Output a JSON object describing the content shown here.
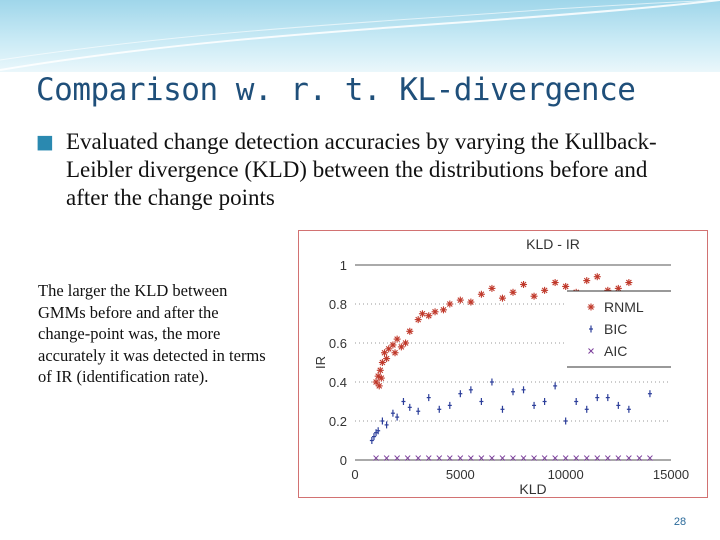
{
  "slide": {
    "title": "Comparison w. r. t. KL-divergence",
    "bullet": "Evaluated change detection accuracies by  varying  the Kullback-Leibler divergence (KLD) between the distributions before and after the change points",
    "side_note": "The larger the KLD between GMMs before and after the change-point was, the more accurately it was detected in terms of  IR (identification rate).",
    "page_number": "28",
    "colors": {
      "title": "#1f4f7a",
      "header": "#9fd6ea",
      "frame": "#d27272"
    }
  },
  "chart_data": {
    "type": "scatter",
    "title": "KLD - IR",
    "xlabel": "KLD",
    "ylabel": "IR",
    "xlim": [
      0,
      15000
    ],
    "ylim": [
      0,
      1
    ],
    "x_ticks": [
      "0",
      "5000",
      "10000",
      "15000"
    ],
    "y_ticks": [
      "0",
      "0.2",
      "0.4",
      "0.6",
      "0.8",
      "1"
    ],
    "legend_position": "right",
    "series": [
      {
        "name": "RNML",
        "marker": "star",
        "color": "#c0392b",
        "points": [
          [
            1000,
            0.4
          ],
          [
            1100,
            0.43
          ],
          [
            1200,
            0.46
          ],
          [
            1300,
            0.5
          ],
          [
            1400,
            0.55
          ],
          [
            1150,
            0.38
          ],
          [
            1250,
            0.42
          ],
          [
            1500,
            0.52
          ],
          [
            1600,
            0.57
          ],
          [
            1800,
            0.59
          ],
          [
            1900,
            0.55
          ],
          [
            2000,
            0.62
          ],
          [
            2200,
            0.58
          ],
          [
            2400,
            0.6
          ],
          [
            2600,
            0.66
          ],
          [
            3000,
            0.72
          ],
          [
            3200,
            0.75
          ],
          [
            3500,
            0.74
          ],
          [
            3800,
            0.76
          ],
          [
            4200,
            0.77
          ],
          [
            4500,
            0.8
          ],
          [
            5000,
            0.82
          ],
          [
            5500,
            0.81
          ],
          [
            6000,
            0.85
          ],
          [
            6500,
            0.88
          ],
          [
            7000,
            0.83
          ],
          [
            7500,
            0.86
          ],
          [
            8000,
            0.9
          ],
          [
            8500,
            0.84
          ],
          [
            9000,
            0.87
          ],
          [
            9500,
            0.91
          ],
          [
            10000,
            0.89
          ],
          [
            10500,
            0.86
          ],
          [
            11000,
            0.92
          ],
          [
            11500,
            0.94
          ],
          [
            12000,
            0.87
          ],
          [
            12500,
            0.88
          ],
          [
            13000,
            0.91
          ]
        ]
      },
      {
        "name": "BIC",
        "marker": "plus",
        "color": "#2c3e9a",
        "points": [
          [
            800,
            0.1
          ],
          [
            900,
            0.12
          ],
          [
            1000,
            0.14
          ],
          [
            1100,
            0.15
          ],
          [
            1300,
            0.2
          ],
          [
            1500,
            0.18
          ],
          [
            1800,
            0.24
          ],
          [
            2000,
            0.22
          ],
          [
            2300,
            0.3
          ],
          [
            2600,
            0.27
          ],
          [
            3000,
            0.25
          ],
          [
            3500,
            0.32
          ],
          [
            4000,
            0.26
          ],
          [
            4500,
            0.28
          ],
          [
            5000,
            0.34
          ],
          [
            5500,
            0.36
          ],
          [
            6000,
            0.3
          ],
          [
            6500,
            0.4
          ],
          [
            7000,
            0.26
          ],
          [
            7500,
            0.35
          ],
          [
            8000,
            0.36
          ],
          [
            8500,
            0.28
          ],
          [
            9000,
            0.3
          ],
          [
            9500,
            0.38
          ],
          [
            10000,
            0.2
          ],
          [
            10500,
            0.3
          ],
          [
            11000,
            0.26
          ],
          [
            11500,
            0.32
          ],
          [
            12000,
            0.32
          ],
          [
            12500,
            0.28
          ],
          [
            13000,
            0.26
          ],
          [
            14000,
            0.34
          ]
        ]
      },
      {
        "name": "AIC",
        "marker": "cross",
        "color": "#7a3d9a",
        "points": [
          [
            1000,
            0.01
          ],
          [
            1500,
            0.01
          ],
          [
            2000,
            0.01
          ],
          [
            2500,
            0.01
          ],
          [
            3000,
            0.01
          ],
          [
            3500,
            0.01
          ],
          [
            4000,
            0.01
          ],
          [
            4500,
            0.01
          ],
          [
            5000,
            0.01
          ],
          [
            5500,
            0.01
          ],
          [
            6000,
            0.01
          ],
          [
            6500,
            0.01
          ],
          [
            7000,
            0.01
          ],
          [
            7500,
            0.01
          ],
          [
            8000,
            0.01
          ],
          [
            8500,
            0.01
          ],
          [
            9000,
            0.01
          ],
          [
            9500,
            0.01
          ],
          [
            10000,
            0.01
          ],
          [
            10500,
            0.01
          ],
          [
            11000,
            0.01
          ],
          [
            11500,
            0.01
          ],
          [
            12000,
            0.01
          ],
          [
            12500,
            0.01
          ],
          [
            13000,
            0.01
          ],
          [
            13500,
            0.01
          ],
          [
            14000,
            0.01
          ]
        ]
      }
    ]
  }
}
